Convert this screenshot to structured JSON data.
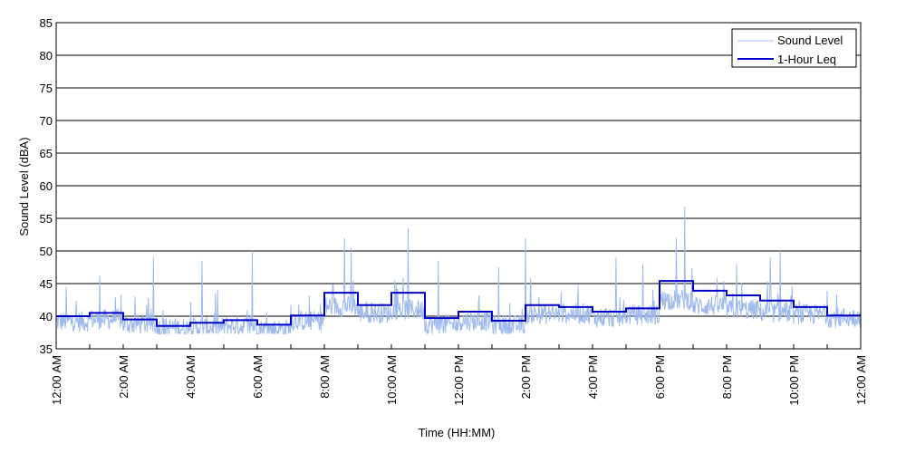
{
  "chart_data": {
    "type": "line",
    "title": "",
    "xlabel": "Time (HH:MM)",
    "ylabel": "Sound Level (dBA)",
    "xlim": [
      0,
      24
    ],
    "ylim": [
      35,
      85
    ],
    "y_ticks": [
      35,
      40,
      45,
      50,
      55,
      60,
      65,
      70,
      75,
      80,
      85
    ],
    "x_ticks": [
      0,
      2,
      4,
      6,
      8,
      10,
      12,
      14,
      16,
      18,
      20,
      22,
      24
    ],
    "x_tick_labels": [
      "12:00 AM",
      "2:00 AM",
      "4:00 AM",
      "6:00 AM",
      "8:00 AM",
      "10:00 AM",
      "12:00 PM",
      "2:00 PM",
      "4:00 PM",
      "6:00 PM",
      "8:00 PM",
      "10:00 PM",
      "12:00 AM"
    ],
    "grid": "horizontal",
    "legend_position": "top-right",
    "series": [
      {
        "name": "Sound Level",
        "color": "#9db9ef",
        "style": "thin-line",
        "hourly_base": [
          39.2,
          39.5,
          38.8,
          38.2,
          38.3,
          38.5,
          38.0,
          39.3,
          41.5,
          40.5,
          41.0,
          38.7,
          39.3,
          38.6,
          40.3,
          40.4,
          39.8,
          40.2,
          42.5,
          41.6,
          41.0,
          40.6,
          40.3,
          39.8
        ],
        "peaks": [
          {
            "x": 0.3,
            "y": 44.5
          },
          {
            "x": 1.3,
            "y": 46.2
          },
          {
            "x": 2.9,
            "y": 49.0
          },
          {
            "x": 4.35,
            "y": 48.5
          },
          {
            "x": 4.75,
            "y": 43.5
          },
          {
            "x": 5.85,
            "y": 50.0
          },
          {
            "x": 8.6,
            "y": 52.0
          },
          {
            "x": 8.8,
            "y": 50.5
          },
          {
            "x": 10.5,
            "y": 53.5
          },
          {
            "x": 11.4,
            "y": 48.5
          },
          {
            "x": 13.2,
            "y": 47.5
          },
          {
            "x": 14.0,
            "y": 52.0
          },
          {
            "x": 16.7,
            "y": 49.0
          },
          {
            "x": 17.5,
            "y": 48.0
          },
          {
            "x": 18.5,
            "y": 52.0
          },
          {
            "x": 18.75,
            "y": 56.8
          },
          {
            "x": 20.3,
            "y": 48.0
          },
          {
            "x": 21.3,
            "y": 49.0
          },
          {
            "x": 21.6,
            "y": 50.0
          }
        ]
      },
      {
        "name": "1-Hour Leq",
        "color": "#0000c8",
        "style": "step",
        "x": [
          0,
          1,
          2,
          3,
          4,
          5,
          6,
          7,
          8,
          9,
          10,
          11,
          12,
          13,
          14,
          15,
          16,
          17,
          18,
          19,
          20,
          21,
          22,
          23
        ],
        "values": [
          40.0,
          40.5,
          39.5,
          38.5,
          39.0,
          39.4,
          38.7,
          40.1,
          43.6,
          41.7,
          43.6,
          39.7,
          40.7,
          39.3,
          41.7,
          41.4,
          40.7,
          41.2,
          45.4,
          43.9,
          43.2,
          42.4,
          41.4,
          40.1
        ]
      }
    ]
  }
}
